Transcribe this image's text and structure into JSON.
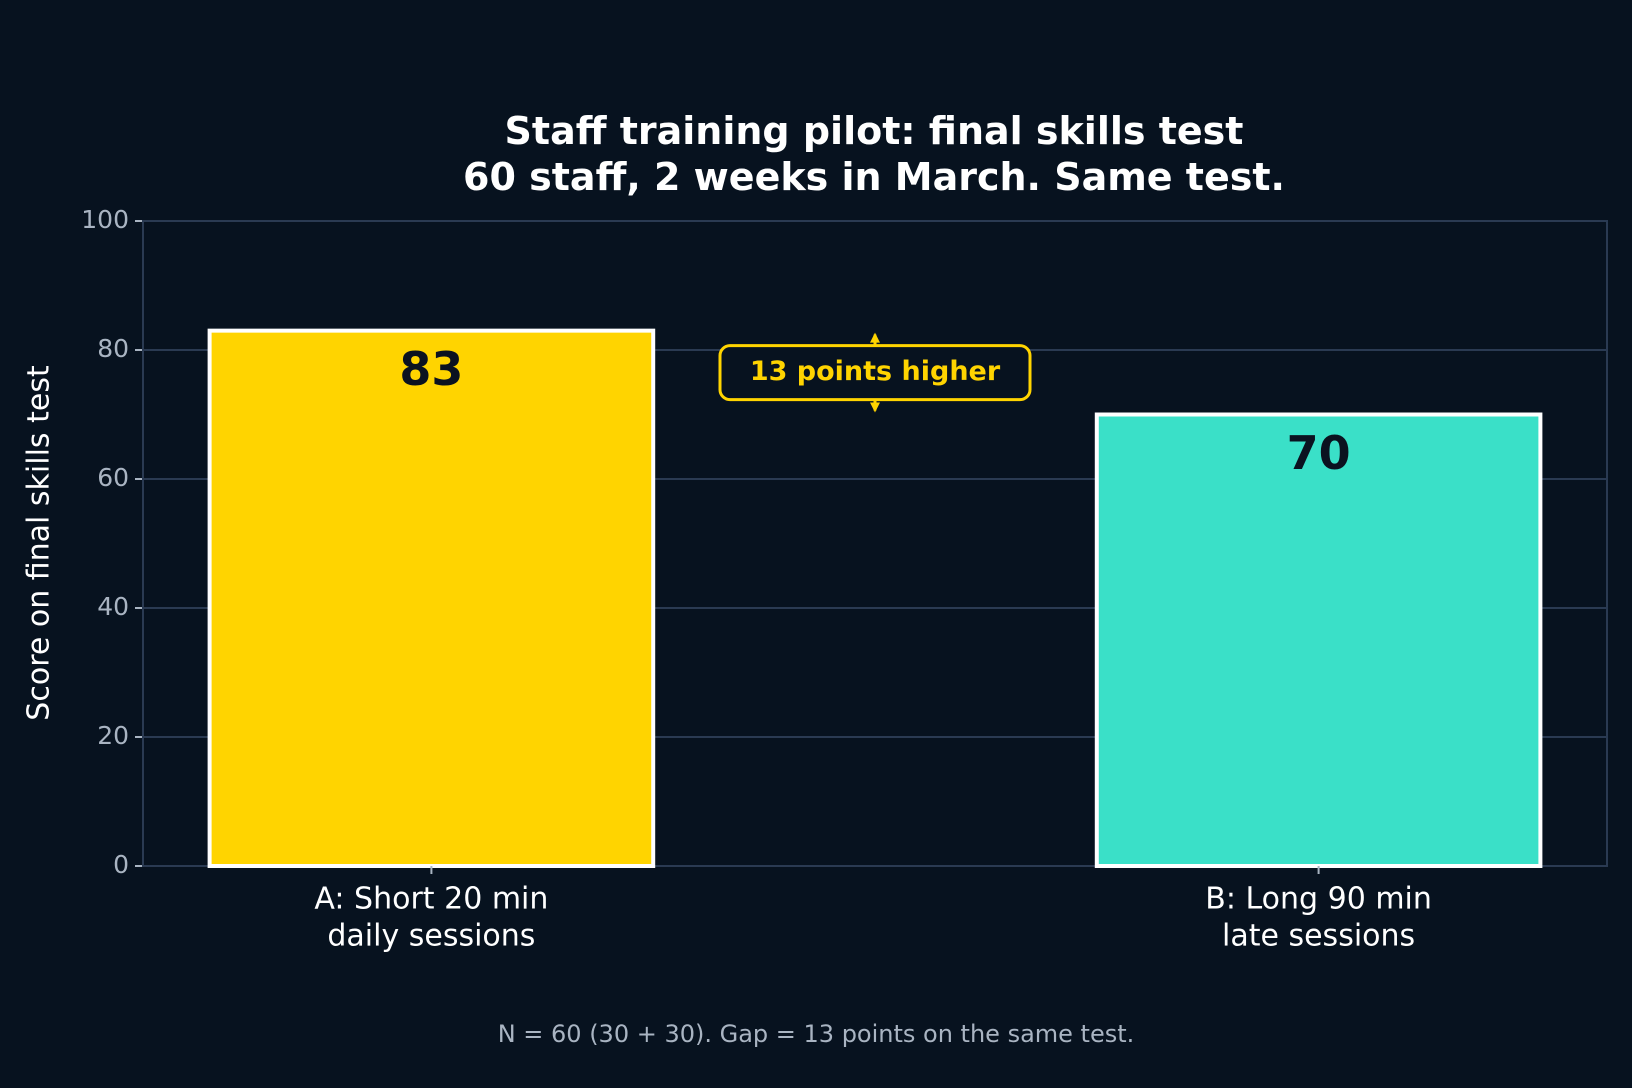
{
  "chart_data": {
    "type": "bar",
    "title": "Staff training pilot: final skills test\n60 staff, 2 weeks in March. Same test.",
    "ylabel": "Score on final skills test",
    "categories": [
      "A: Short 20 min\ndaily sessions",
      "B: Long 90 min\nlate sessions"
    ],
    "values": [
      83,
      70
    ],
    "colors": [
      "#ffd400",
      "#3ae0c8"
    ],
    "ylim": [
      0,
      100
    ],
    "yticks": [
      0,
      20,
      40,
      60,
      80,
      100
    ],
    "grid": true,
    "annotation": "13 points higher",
    "footnote": "N = 60 (30 + 30). Gap = 13 points on the same test."
  }
}
